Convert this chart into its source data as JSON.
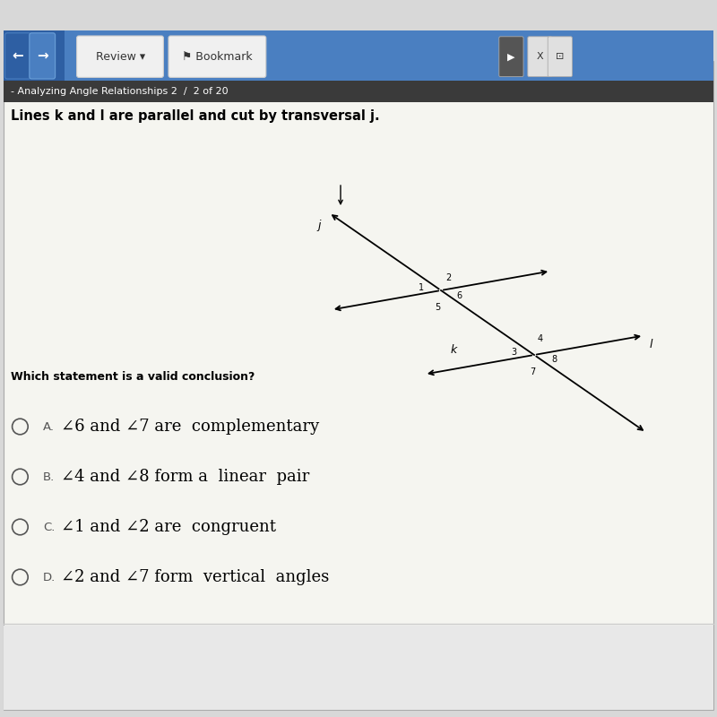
{
  "bg_color": "#d8d8d8",
  "top_bar_color": "#4a7fc1",
  "dark_bar_color": "#3a3a3a",
  "content_bg": "#f5f5f0",
  "header_text": "- Analyzing Angle Relationships 2  /  2 of 20",
  "problem_text": "Lines k and l are parallel and cut by transversal j.",
  "question_text": "Which statement is a valid conclusion?",
  "options": [
    [
      "A.",
      "∠6 and ∠7 are  complementary"
    ],
    [
      "B.",
      "∠4 and ∠8 form a  linear  pair"
    ],
    [
      "C.",
      "∠1 and ∠2 are  congruent"
    ],
    [
      "D.",
      "∠2 and ∠7 form  vertical  angles"
    ]
  ],
  "ix1": [
    0.615,
    0.595
  ],
  "ix2": [
    0.745,
    0.505
  ],
  "par_ang_deg": 10,
  "trans_ang_deg": -55,
  "ext_par": 0.155,
  "ext_trans_up": 0.19,
  "ext_trans_down": 0.19
}
